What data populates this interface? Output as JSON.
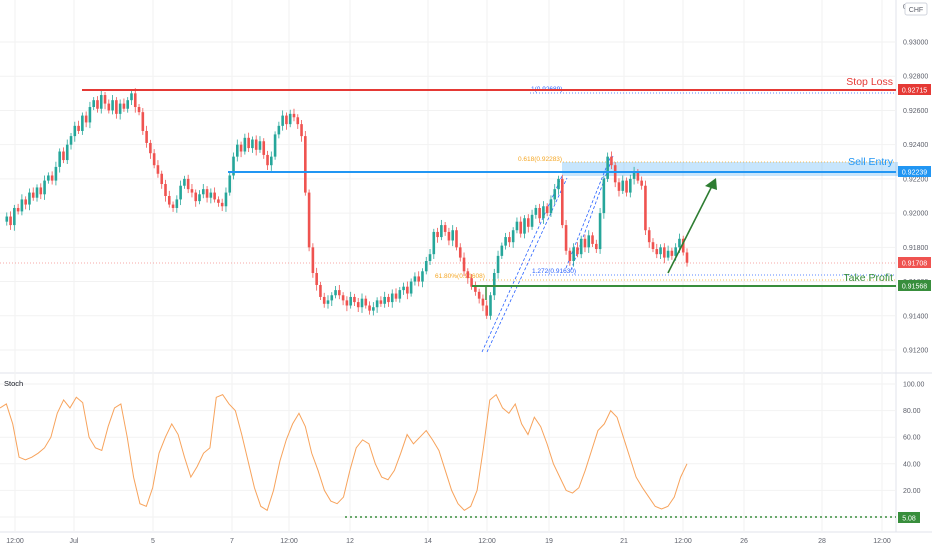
{
  "currency_badge": "CHF",
  "colors": {
    "up": "#26a69a",
    "down": "#ef5350",
    "stop_loss": "#e53935",
    "sell_entry": "#2196f3",
    "take_profit": "#388e3c",
    "fib": "#2962ff",
    "fib_orange": "#f5a623",
    "stoch": "#f7a35c",
    "grid": "#f2f2f2",
    "axis_text": "#5d606b"
  },
  "price_axis": {
    "ticks": [
      "0.93000",
      "0.92800",
      "0.92600",
      "0.92400",
      "0.92200",
      "0.92000",
      "0.91800",
      "0.91600",
      "0.91400",
      "0.91200"
    ]
  },
  "stoch_axis": {
    "title": "Stoch",
    "ticks": [
      "100.00",
      "80.00",
      "60.00",
      "40.00",
      "20.00",
      "0.00"
    ]
  },
  "time_axis": {
    "ticks": [
      "12:00",
      "Jul",
      "5",
      "7",
      "12:00",
      "12",
      "14",
      "12:00",
      "19",
      "21",
      "12:00",
      "26",
      "28",
      "12:00"
    ]
  },
  "levels": {
    "stop_loss": {
      "label": "Stop Loss",
      "value": 0.92715,
      "tag": "0.92715"
    },
    "sell_entry": {
      "label": "Sell Entry",
      "value": 0.92239,
      "tag": "0.92239"
    },
    "take_profit": {
      "label": "Take Profit",
      "value": 0.91568,
      "tag": "0.91568"
    },
    "current": {
      "value": 0.91708,
      "tag": "0.91708"
    }
  },
  "fib_labels": {
    "ext_1": "1(0.92689)",
    "ret_618": "0.618(0.92283)",
    "ret_618_low": "61.80%(0.91608)",
    "ext_1272": "1.272(0.91630)"
  },
  "stoch_level": {
    "value": 5.08,
    "tag": "5.08"
  },
  "chart_data": [
    {
      "type": "line",
      "title": "",
      "description_series": "candlestick price path",
      "ylim": [
        0.9112,
        0.9305
      ],
      "series": [
        {
          "values": [
            0.9195,
            0.9198,
            0.9193,
            0.9203,
            0.9201,
            0.9208,
            0.9205,
            0.9212,
            0.9209,
            0.9215,
            0.9211,
            0.9219,
            0.9222,
            0.9219,
            0.9227,
            0.9236,
            0.9231,
            0.924,
            0.9245,
            0.9251,
            0.9248,
            0.9257,
            0.9253,
            0.9262,
            0.9266,
            0.9261,
            0.9269,
            0.9264,
            0.926,
            0.9266,
            0.9258,
            0.9264,
            0.9261,
            0.9266,
            0.927,
            0.9262,
            0.9259,
            0.9248,
            0.9241,
            0.9235,
            0.9228,
            0.9223,
            0.9217,
            0.921,
            0.9205,
            0.9203,
            0.9208,
            0.9216,
            0.922,
            0.9214,
            0.9212,
            0.9207,
            0.9211,
            0.9214,
            0.9209,
            0.9212,
            0.9208,
            0.9206,
            0.9204,
            0.9212,
            0.9222,
            0.9233,
            0.924,
            0.9236,
            0.9244,
            0.9238,
            0.9243,
            0.9237,
            0.9242,
            0.9234,
            0.9228,
            0.9233,
            0.9246,
            0.9251,
            0.9257,
            0.9252,
            0.9258,
            0.9256,
            0.9252,
            0.9245,
            0.9212,
            0.918,
            0.9165,
            0.9158,
            0.9151,
            0.9147,
            0.9149,
            0.9152,
            0.9155,
            0.9152,
            0.9149,
            0.9146,
            0.9151,
            0.9148,
            0.9145,
            0.915,
            0.9146,
            0.9143,
            0.9145,
            0.9149,
            0.9147,
            0.9151,
            0.9148,
            0.9153,
            0.915,
            0.9155,
            0.9157,
            0.9153,
            0.916,
            0.9163,
            0.916,
            0.9166,
            0.9172,
            0.9176,
            0.9189,
            0.9186,
            0.9193,
            0.9189,
            0.9184,
            0.919,
            0.918,
            0.9174,
            0.9166,
            0.9162,
            0.9157,
            0.9154,
            0.915,
            0.9146,
            0.914,
            0.9152,
            0.9165,
            0.9175,
            0.9181,
            0.9186,
            0.9183,
            0.919,
            0.9195,
            0.9188,
            0.9197,
            0.9192,
            0.9199,
            0.9203,
            0.9197,
            0.9204,
            0.92,
            0.9208,
            0.9214,
            0.922,
            0.9193,
            0.9178,
            0.9172,
            0.918,
            0.9176,
            0.9185,
            0.918,
            0.9187,
            0.9182,
            0.9179,
            0.92,
            0.922,
            0.9233,
            0.9228,
            0.9218,
            0.9213,
            0.9219,
            0.9212,
            0.922,
            0.9224,
            0.9219,
            0.9216,
            0.919,
            0.9183,
            0.9179,
            0.9176,
            0.918,
            0.9174,
            0.9178,
            0.9175,
            0.918,
            0.9185,
            0.9177,
            0.9171
          ]
        }
      ]
    },
    {
      "type": "line",
      "title": "Stoch",
      "ylim": [
        0,
        100
      ],
      "series": [
        {
          "name": "Stoch",
          "values": [
            82,
            85,
            70,
            45,
            43,
            45,
            48,
            52,
            60,
            78,
            88,
            82,
            90,
            86,
            60,
            52,
            50,
            68,
            82,
            85,
            60,
            30,
            10,
            8,
            22,
            48,
            60,
            70,
            62,
            45,
            30,
            38,
            48,
            52,
            90,
            92,
            85,
            80,
            62,
            42,
            22,
            8,
            5,
            20,
            42,
            58,
            70,
            78,
            68,
            48,
            35,
            20,
            12,
            10,
            15,
            35,
            52,
            58,
            55,
            40,
            30,
            28,
            35,
            48,
            62,
            55,
            60,
            65,
            58,
            50,
            35,
            20,
            10,
            5,
            8,
            20,
            52,
            88,
            92,
            82,
            78,
            85,
            70,
            62,
            75,
            68,
            55,
            40,
            30,
            20,
            18,
            22,
            35,
            50,
            65,
            70,
            80,
            75,
            60,
            45,
            30,
            22,
            15,
            8,
            6,
            8,
            15,
            30,
            40
          ]
        }
      ]
    }
  ]
}
